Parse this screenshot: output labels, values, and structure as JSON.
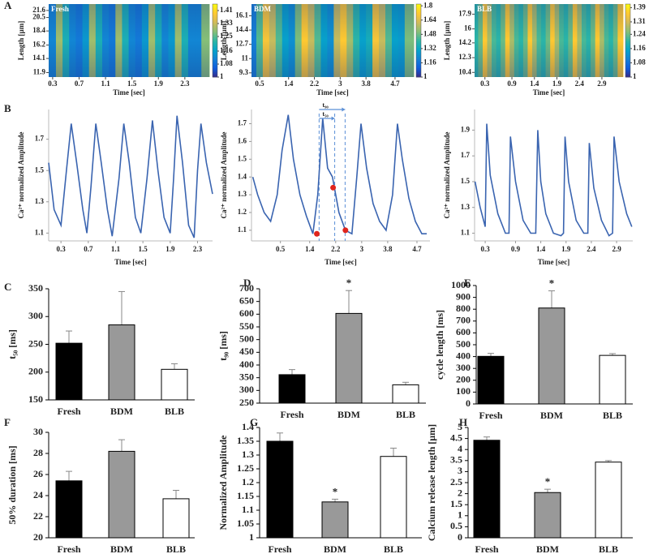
{
  "chart_data": [
    {
      "type": "heatmap",
      "panel": "A",
      "label": "Fresh",
      "x_label": "Time [sec]",
      "y_label": "Length [µm]",
      "x": [
        0.3,
        0.4,
        0.5,
        0.6,
        0.7,
        0.8,
        0.9,
        1.0,
        1.1,
        1.2,
        1.3,
        1.4,
        1.5,
        1.6,
        1.7,
        1.8,
        1.9,
        2.0,
        2.1,
        2.2,
        2.3,
        2.4,
        2.5,
        2.6
      ],
      "values": [
        1.12,
        1.3,
        1.2,
        1.12,
        1.1,
        1.15,
        1.3,
        1.2,
        1.12,
        1.1,
        1.3,
        1.2,
        1.12,
        1.1,
        1.15,
        1.3,
        1.2,
        1.12,
        1.15,
        1.3,
        1.2,
        1.12,
        1.12,
        1.28
      ],
      "xlim": [
        0.24,
        2.67
      ],
      "xticks": [
        0.3,
        0.7,
        1.1,
        1.5,
        1.9,
        2.3
      ],
      "ylim": [
        11.2,
        22.6
      ],
      "yticks": [
        21.6,
        20.5,
        18.4,
        16.2,
        14.1,
        11.9
      ],
      "clim": [
        1,
        1.45
      ],
      "cticks": [
        1.41,
        1.33,
        1.25,
        1.16,
        1.08,
        1
      ],
      "colormap": [
        "#352a87",
        "#0f5cdd",
        "#1481d6",
        "#06a4ca",
        "#2eb7a4",
        "#87bf77",
        "#d1bb59",
        "#fec832",
        "#f9fb0e"
      ]
    },
    {
      "type": "heatmap",
      "label": "BDM",
      "x_label": "Time [sec]",
      "y_label": "Length [µm]",
      "x": [
        0.3,
        0.5,
        0.7,
        0.9,
        1.1,
        1.3,
        1.5,
        1.7,
        1.9,
        2.1,
        2.3,
        2.5,
        2.7,
        2.9,
        3.1,
        3.3,
        3.5,
        3.7,
        3.9,
        4.1,
        4.3,
        4.5,
        4.7,
        4.9,
        5.1
      ],
      "values": [
        1.2,
        1.45,
        1.7,
        1.6,
        1.45,
        1.3,
        1.25,
        1.5,
        1.72,
        1.6,
        1.45,
        1.3,
        1.25,
        1.6,
        1.72,
        1.55,
        1.4,
        1.3,
        1.35,
        1.7,
        1.6,
        1.45,
        1.3,
        1.28,
        1.5
      ],
      "xlim": [
        0.25,
        5.28
      ],
      "xticks": [
        0.5,
        1.4,
        2.2,
        3,
        3.8,
        4.7
      ],
      "ylim": [
        8.8,
        17.5
      ],
      "yticks": [
        16.1,
        14.4,
        12.7,
        11,
        9.3
      ],
      "clim": [
        1,
        1.82
      ],
      "cticks": [
        1.8,
        1.64,
        1.48,
        1.32,
        1.16,
        1
      ],
      "colormap": [
        "#352a87",
        "#0f5cdd",
        "#1481d6",
        "#06a4ca",
        "#2eb7a4",
        "#87bf77",
        "#d1bb59",
        "#fec832",
        "#f9fb0e"
      ]
    },
    {
      "type": "heatmap",
      "label": "BLB",
      "x_label": "Time [sec]",
      "y_label": "Length [µm]",
      "x": [
        0.1,
        0.2,
        0.3,
        0.4,
        0.5,
        0.6,
        0.7,
        0.8,
        0.9,
        1.0,
        1.1,
        1.2,
        1.3,
        1.4,
        1.5,
        1.6,
        1.7,
        1.8,
        1.9,
        2.0,
        2.1,
        2.2,
        2.3,
        2.4,
        2.5,
        2.6,
        2.7,
        2.8,
        2.9,
        3.0,
        3.1,
        3.2,
        3.3
      ],
      "values": [
        1.2,
        1.24,
        1.36,
        1.28,
        1.22,
        1.2,
        1.24,
        1.36,
        1.28,
        1.22,
        1.2,
        1.24,
        1.36,
        1.28,
        1.22,
        1.2,
        1.24,
        1.36,
        1.28,
        1.22,
        1.2,
        1.24,
        1.36,
        1.28,
        1.22,
        1.2,
        1.24,
        1.36,
        1.28,
        1.22,
        1.2,
        1.24,
        1.36
      ],
      "xlim": [
        0.07,
        3.37
      ],
      "xticks": [
        0.3,
        0.9,
        1.4,
        1.9,
        2.4,
        2.9
      ],
      "ylim": [
        9.8,
        19.2
      ],
      "yticks": [
        17.9,
        16,
        14.2,
        12.3,
        10.4
      ],
      "clim": [
        1,
        1.41
      ],
      "cticks": [
        1.39,
        1.31,
        1.24,
        1.16,
        1.08,
        1
      ],
      "colormap": [
        "#352a87",
        "#0f5cdd",
        "#1481d6",
        "#06a4ca",
        "#2eb7a4",
        "#87bf77",
        "#d1bb59",
        "#fec832",
        "#f9fb0e"
      ]
    },
    {
      "type": "line",
      "panel": "B",
      "x_label": "Time [sec]",
      "y_label": "Ca²⁺ normalized Amplitude",
      "color": "#3a64b0",
      "x": [
        0.12,
        0.2,
        0.3,
        0.38,
        0.45,
        0.53,
        0.62,
        0.68,
        0.74,
        0.81,
        0.89,
        0.98,
        1.05,
        1.15,
        1.22,
        1.3,
        1.39,
        1.47,
        1.56,
        1.64,
        1.72,
        1.81,
        1.9,
        1.95,
        2.0,
        2.08,
        2.17,
        2.25,
        2.3,
        2.35,
        2.43,
        2.52
      ],
      "values": [
        1.55,
        1.25,
        1.15,
        1.5,
        1.8,
        1.55,
        1.25,
        1.1,
        1.4,
        1.8,
        1.55,
        1.25,
        1.08,
        1.45,
        1.8,
        1.55,
        1.2,
        1.1,
        1.45,
        1.82,
        1.5,
        1.2,
        1.1,
        1.45,
        1.85,
        1.55,
        1.15,
        1.07,
        1.5,
        1.8,
        1.55,
        1.35
      ],
      "xlim": [
        0.12,
        2.52
      ],
      "xticks": [
        0.3,
        0.7,
        1.1,
        1.5,
        1.9,
        2.3
      ],
      "ylim": [
        1.05,
        1.89
      ],
      "yticks": [
        1.1,
        1.3,
        1.5,
        1.7
      ]
    },
    {
      "type": "line",
      "x_label": "Time [sec]",
      "y_label": "Ca²⁺ normalized Amplitude",
      "color": "#3a64b0",
      "x": [
        -0.35,
        -0.2,
        0,
        0.2,
        0.4,
        0.55,
        0.74,
        0.9,
        1.1,
        1.3,
        1.5,
        1.65,
        1.8,
        1.95,
        2.1,
        2.3,
        2.5,
        2.7,
        2.85,
        2.98,
        3.15,
        3.35,
        3.55,
        3.75,
        3.95,
        4.1,
        4.25,
        4.45,
        4.65,
        4.85,
        5.0
      ],
      "values": [
        1.4,
        1.3,
        1.2,
        1.15,
        1.3,
        1.55,
        1.75,
        1.5,
        1.3,
        1.18,
        1.08,
        1.3,
        1.73,
        1.45,
        1.4,
        1.2,
        1.1,
        1.08,
        1.4,
        1.7,
        1.45,
        1.25,
        1.15,
        1.1,
        1.3,
        1.7,
        1.5,
        1.28,
        1.15,
        1.08,
        1.08
      ],
      "xlim": [
        -0.39,
        5.1
      ],
      "xticks": [
        0.5,
        1.4,
        2.2,
        3,
        3.8,
        4.7
      ],
      "ylim": [
        1.04,
        1.78
      ],
      "yticks": [
        1.1,
        1.2,
        1.3,
        1.4,
        1.5,
        1.6,
        1.7
      ],
      "points": {
        "x": [
          1.62,
          2.12,
          2.5
        ],
        "values": [
          1.08,
          1.34,
          1.1
        ],
        "color": "#e0241c"
      },
      "guides": [
        1.69,
        2.17,
        2.49
      ],
      "annotations": [
        {
          "text": "t₉₀",
          "x1": 1.69,
          "x2": 2.49
        },
        {
          "text": "t₅₀",
          "x1": 1.69,
          "x2": 2.17
        }
      ]
    },
    {
      "type": "line",
      "x_label": "Time [sec]",
      "y_label": "Ca²⁺ normalized Amplitude",
      "color": "#3a64b0",
      "x": [
        0.1,
        0.2,
        0.3,
        0.33,
        0.4,
        0.55,
        0.7,
        0.77,
        0.8,
        0.9,
        1.05,
        1.2,
        1.3,
        1.34,
        1.4,
        1.5,
        1.65,
        1.8,
        1.85,
        1.88,
        1.95,
        2.1,
        2.25,
        2.33,
        2.36,
        2.45,
        2.6,
        2.75,
        2.82,
        2.85,
        2.95,
        3.1,
        3.2
      ],
      "values": [
        1.5,
        1.3,
        1.15,
        1.95,
        1.55,
        1.25,
        1.1,
        1.1,
        1.85,
        1.5,
        1.2,
        1.1,
        1.1,
        1.9,
        1.5,
        1.25,
        1.1,
        1.08,
        1.1,
        1.85,
        1.5,
        1.2,
        1.1,
        1.1,
        1.8,
        1.45,
        1.2,
        1.08,
        1.1,
        1.85,
        1.5,
        1.25,
        1.15
      ],
      "xlim": [
        0.09,
        3.22
      ],
      "xticks": [
        0.3,
        0.9,
        1.4,
        1.9,
        2.4,
        2.9
      ],
      "ylim": [
        1.04,
        2.06
      ],
      "yticks": [
        1.1,
        1.3,
        1.5,
        1.7,
        1.9
      ]
    },
    {
      "type": "bar",
      "panel": "C",
      "y_label": "t₅₀ [ms]",
      "categories": [
        "Fresh",
        "BDM",
        "BLB"
      ],
      "values": [
        252,
        285,
        205
      ],
      "errors": [
        22,
        60,
        10
      ],
      "colors": [
        "#000000",
        "#999999",
        "#ffffff"
      ],
      "ylim": [
        150,
        350
      ],
      "yticks": [
        150,
        200,
        250,
        300,
        350
      ]
    },
    {
      "type": "bar",
      "panel": "D",
      "y_label": "t₉₀ [ms]",
      "categories": [
        "Fresh",
        "BDM",
        "BLB"
      ],
      "values": [
        362,
        603,
        322
      ],
      "errors": [
        20,
        90,
        10
      ],
      "colors": [
        "#000000",
        "#999999",
        "#ffffff"
      ],
      "ylim": [
        250,
        700
      ],
      "yticks": [
        250,
        300,
        350,
        400,
        450,
        500,
        550,
        600,
        650,
        700
      ],
      "annotations": [
        {
          "text": "*",
          "category": "BDM"
        }
      ]
    },
    {
      "type": "bar",
      "panel": "E",
      "y_label": "cycle length [ms]",
      "categories": [
        "Fresh",
        "BDM",
        "BLB"
      ],
      "values": [
        402,
        810,
        410
      ],
      "errors": [
        25,
        145,
        15
      ],
      "colors": [
        "#000000",
        "#999999",
        "#ffffff"
      ],
      "ylim": [
        0,
        1000
      ],
      "yticks": [
        0,
        100,
        200,
        300,
        400,
        500,
        600,
        700,
        800,
        900,
        1000
      ],
      "annotations": [
        {
          "text": "*",
          "category": "BDM"
        }
      ]
    },
    {
      "type": "bar",
      "panel": "F",
      "y_label": "50% duration [ms]",
      "categories": [
        "Fresh",
        "BDM",
        "BLB"
      ],
      "values": [
        25.4,
        28.2,
        23.7
      ],
      "errors": [
        0.9,
        1.1,
        0.8
      ],
      "colors": [
        "#000000",
        "#999999",
        "#ffffff"
      ],
      "ylim": [
        20,
        30
      ],
      "yticks": [
        20,
        22,
        24,
        26,
        28,
        30
      ]
    },
    {
      "type": "bar",
      "panel": "G",
      "y_label": "Normalized Amplitude",
      "categories": [
        "Fresh",
        "BDM",
        "BLB"
      ],
      "values": [
        1.35,
        1.13,
        1.295
      ],
      "errors": [
        0.03,
        0.01,
        0.03
      ],
      "colors": [
        "#000000",
        "#999999",
        "#ffffff"
      ],
      "ylim": [
        1,
        1.4
      ],
      "yticks": [
        1,
        1.05,
        1.1,
        1.15,
        1.2,
        1.25,
        1.3,
        1.35,
        1.4
      ],
      "annotations": [
        {
          "text": "*",
          "category": "BDM"
        }
      ]
    },
    {
      "type": "bar",
      "panel": "H",
      "y_label": "Calcium release length [µm]",
      "categories": [
        "Fresh",
        "BDM",
        "BLB"
      ],
      "values": [
        4.42,
        2.05,
        3.43
      ],
      "errors": [
        0.15,
        0.15,
        0.07
      ],
      "colors": [
        "#000000",
        "#999999",
        "#ffffff"
      ],
      "ylim": [
        0,
        5
      ],
      "yticks": [
        0,
        0.5,
        1,
        1.5,
        2,
        2.5,
        3,
        3.5,
        4,
        4.5,
        5
      ],
      "annotations": [
        {
          "text": "*",
          "category": "BDM"
        }
      ]
    }
  ]
}
